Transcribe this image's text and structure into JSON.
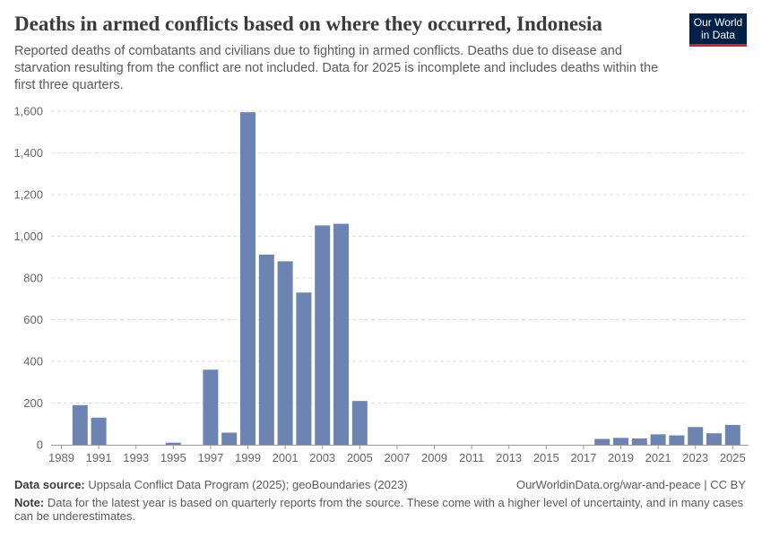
{
  "header": {
    "title": "Deaths in armed conflicts based on where they occurred, Indonesia",
    "subtitle": "Reported deaths of combatants and civilians due to fighting in armed conflicts. Deaths due to disease and starvation resulting from the conflict are not included. Data for 2025 is incomplete and includes deaths within the first three quarters."
  },
  "logo": {
    "line1": "Our World",
    "line2": "in Data"
  },
  "footer": {
    "source_label": "Data source:",
    "source_text": "Uppsala Conflict Data Program (2025); geoBoundaries (2023)",
    "url": "OurWorldinData.org/war-and-peace | CC BY",
    "note_label": "Note:",
    "note_text": "Data for the latest year is based on quarterly reports from the source. These come with a higher level of uncertainty, and in many cases can be underestimates."
  },
  "colors": {
    "bar": "#6d84b3",
    "grid": "#dddddd",
    "axis": "#999999",
    "text": "#666666"
  },
  "chart_data": {
    "type": "bar",
    "title": "Deaths in armed conflicts based on where they occurred, Indonesia",
    "xlabel": "",
    "ylabel": "",
    "ylim": [
      0,
      1600
    ],
    "yticks": [
      0,
      200,
      400,
      600,
      800,
      1000,
      1200,
      1400,
      1600
    ],
    "ytick_labels": [
      "0",
      "200",
      "400",
      "600",
      "800",
      "1,000",
      "1,200",
      "1,400",
      "1,600"
    ],
    "xticks": [
      1989,
      1991,
      1993,
      1995,
      1997,
      1999,
      2001,
      2003,
      2005,
      2007,
      2009,
      2011,
      2013,
      2015,
      2017,
      2019,
      2021,
      2023,
      2025
    ],
    "categories": [
      1989,
      1990,
      1991,
      1992,
      1993,
      1994,
      1995,
      1996,
      1997,
      1998,
      1999,
      2000,
      2001,
      2002,
      2003,
      2004,
      2005,
      2006,
      2007,
      2008,
      2009,
      2010,
      2011,
      2012,
      2013,
      2014,
      2015,
      2016,
      2017,
      2018,
      2019,
      2020,
      2021,
      2022,
      2023,
      2024,
      2025
    ],
    "values": [
      0,
      190,
      130,
      0,
      0,
      0,
      10,
      0,
      360,
      58,
      1595,
      912,
      880,
      730,
      1052,
      1060,
      210,
      0,
      0,
      0,
      0,
      0,
      0,
      0,
      0,
      0,
      0,
      0,
      0,
      28,
      33,
      30,
      50,
      45,
      85,
      55,
      95
    ]
  }
}
